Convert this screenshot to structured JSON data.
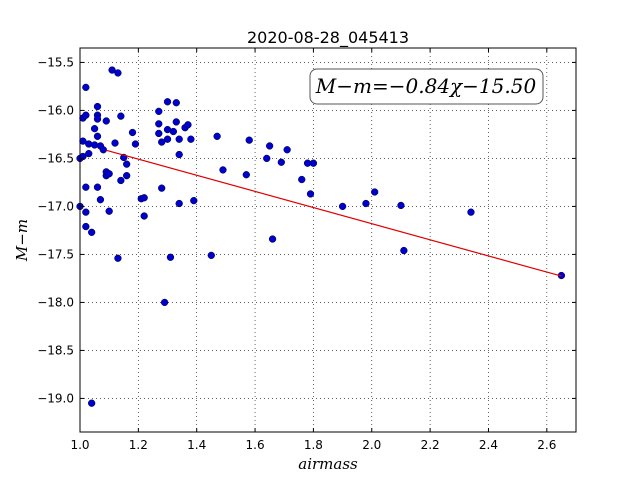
{
  "chart_data": {
    "type": "scatter",
    "title": "2020-08-28_045413",
    "xlabel": "airmass",
    "ylabel": "M−m",
    "xlim": [
      1.0,
      2.7
    ],
    "ylim": [
      -19.35,
      -15.35
    ],
    "x_ticks": [
      "1.0",
      "1.2",
      "1.4",
      "1.6",
      "1.8",
      "2.0",
      "2.2",
      "2.4",
      "2.6"
    ],
    "y_ticks": [
      "−15.5",
      "−16.0",
      "−16.5",
      "−17.0",
      "−17.5",
      "−18.0",
      "−18.5",
      "−19.0"
    ],
    "grid": true,
    "annotation": "M−m=−0.84χ−15.50",
    "annotation_position": "top-right",
    "fit": {
      "slope": -0.84,
      "intercept": -15.5,
      "x_range": [
        1.09,
        2.65
      ],
      "color": "#e00000"
    },
    "point_color": "#0000cc",
    "points": [
      [
        1.0,
        -16.5
      ],
      [
        1.0,
        -17.0
      ],
      [
        1.01,
        -16.48
      ],
      [
        1.01,
        -16.32
      ],
      [
        1.01,
        -16.08
      ],
      [
        1.02,
        -15.76
      ],
      [
        1.02,
        -16.05
      ],
      [
        1.02,
        -16.8
      ],
      [
        1.02,
        -17.06
      ],
      [
        1.02,
        -17.21
      ],
      [
        1.03,
        -16.35
      ],
      [
        1.03,
        -16.45
      ],
      [
        1.04,
        -19.05
      ],
      [
        1.04,
        -17.27
      ],
      [
        1.05,
        -16.19
      ],
      [
        1.05,
        -16.36
      ],
      [
        1.06,
        -15.96
      ],
      [
        1.06,
        -16.05
      ],
      [
        1.06,
        -16.09
      ],
      [
        1.06,
        -16.27
      ],
      [
        1.06,
        -16.8
      ],
      [
        1.07,
        -16.37
      ],
      [
        1.07,
        -16.93
      ],
      [
        1.08,
        -16.41
      ],
      [
        1.09,
        -16.68
      ],
      [
        1.09,
        -16.11
      ],
      [
        1.09,
        -16.64
      ],
      [
        1.1,
        -17.05
      ],
      [
        1.1,
        -16.66
      ],
      [
        1.11,
        -15.58
      ],
      [
        1.12,
        -16.34
      ],
      [
        1.13,
        -15.61
      ],
      [
        1.13,
        -17.54
      ],
      [
        1.14,
        -16.06
      ],
      [
        1.14,
        -16.73
      ],
      [
        1.15,
        -16.49
      ],
      [
        1.16,
        -16.56
      ],
      [
        1.16,
        -16.68
      ],
      [
        1.18,
        -16.23
      ],
      [
        1.19,
        -16.35
      ],
      [
        1.21,
        -16.92
      ],
      [
        1.22,
        -16.91
      ],
      [
        1.22,
        -17.1
      ],
      [
        1.27,
        -16.01
      ],
      [
        1.27,
        -16.14
      ],
      [
        1.27,
        -16.24
      ],
      [
        1.28,
        -16.33
      ],
      [
        1.28,
        -16.81
      ],
      [
        1.29,
        -18.0
      ],
      [
        1.3,
        -16.3
      ],
      [
        1.3,
        -16.2
      ],
      [
        1.3,
        -15.91
      ],
      [
        1.31,
        -17.53
      ],
      [
        1.32,
        -16.22
      ],
      [
        1.33,
        -15.92
      ],
      [
        1.33,
        -16.12
      ],
      [
        1.34,
        -16.97
      ],
      [
        1.34,
        -16.3
      ],
      [
        1.34,
        -16.46
      ],
      [
        1.36,
        -16.18
      ],
      [
        1.37,
        -16.15
      ],
      [
        1.38,
        -16.3
      ],
      [
        1.39,
        -16.94
      ],
      [
        1.45,
        -17.51
      ],
      [
        1.47,
        -16.27
      ],
      [
        1.49,
        -16.62
      ],
      [
        1.57,
        -16.67
      ],
      [
        1.58,
        -16.31
      ],
      [
        1.64,
        -16.5
      ],
      [
        1.65,
        -16.37
      ],
      [
        1.66,
        -17.34
      ],
      [
        1.69,
        -16.54
      ],
      [
        1.71,
        -16.41
      ],
      [
        1.76,
        -16.72
      ],
      [
        1.78,
        -16.55
      ],
      [
        1.79,
        -16.87
      ],
      [
        1.8,
        -16.55
      ],
      [
        1.9,
        -17.0
      ],
      [
        1.98,
        -16.97
      ],
      [
        2.01,
        -16.85
      ],
      [
        2.1,
        -16.99
      ],
      [
        2.11,
        -17.46
      ],
      [
        2.34,
        -17.06
      ],
      [
        2.65,
        -17.72
      ]
    ]
  }
}
